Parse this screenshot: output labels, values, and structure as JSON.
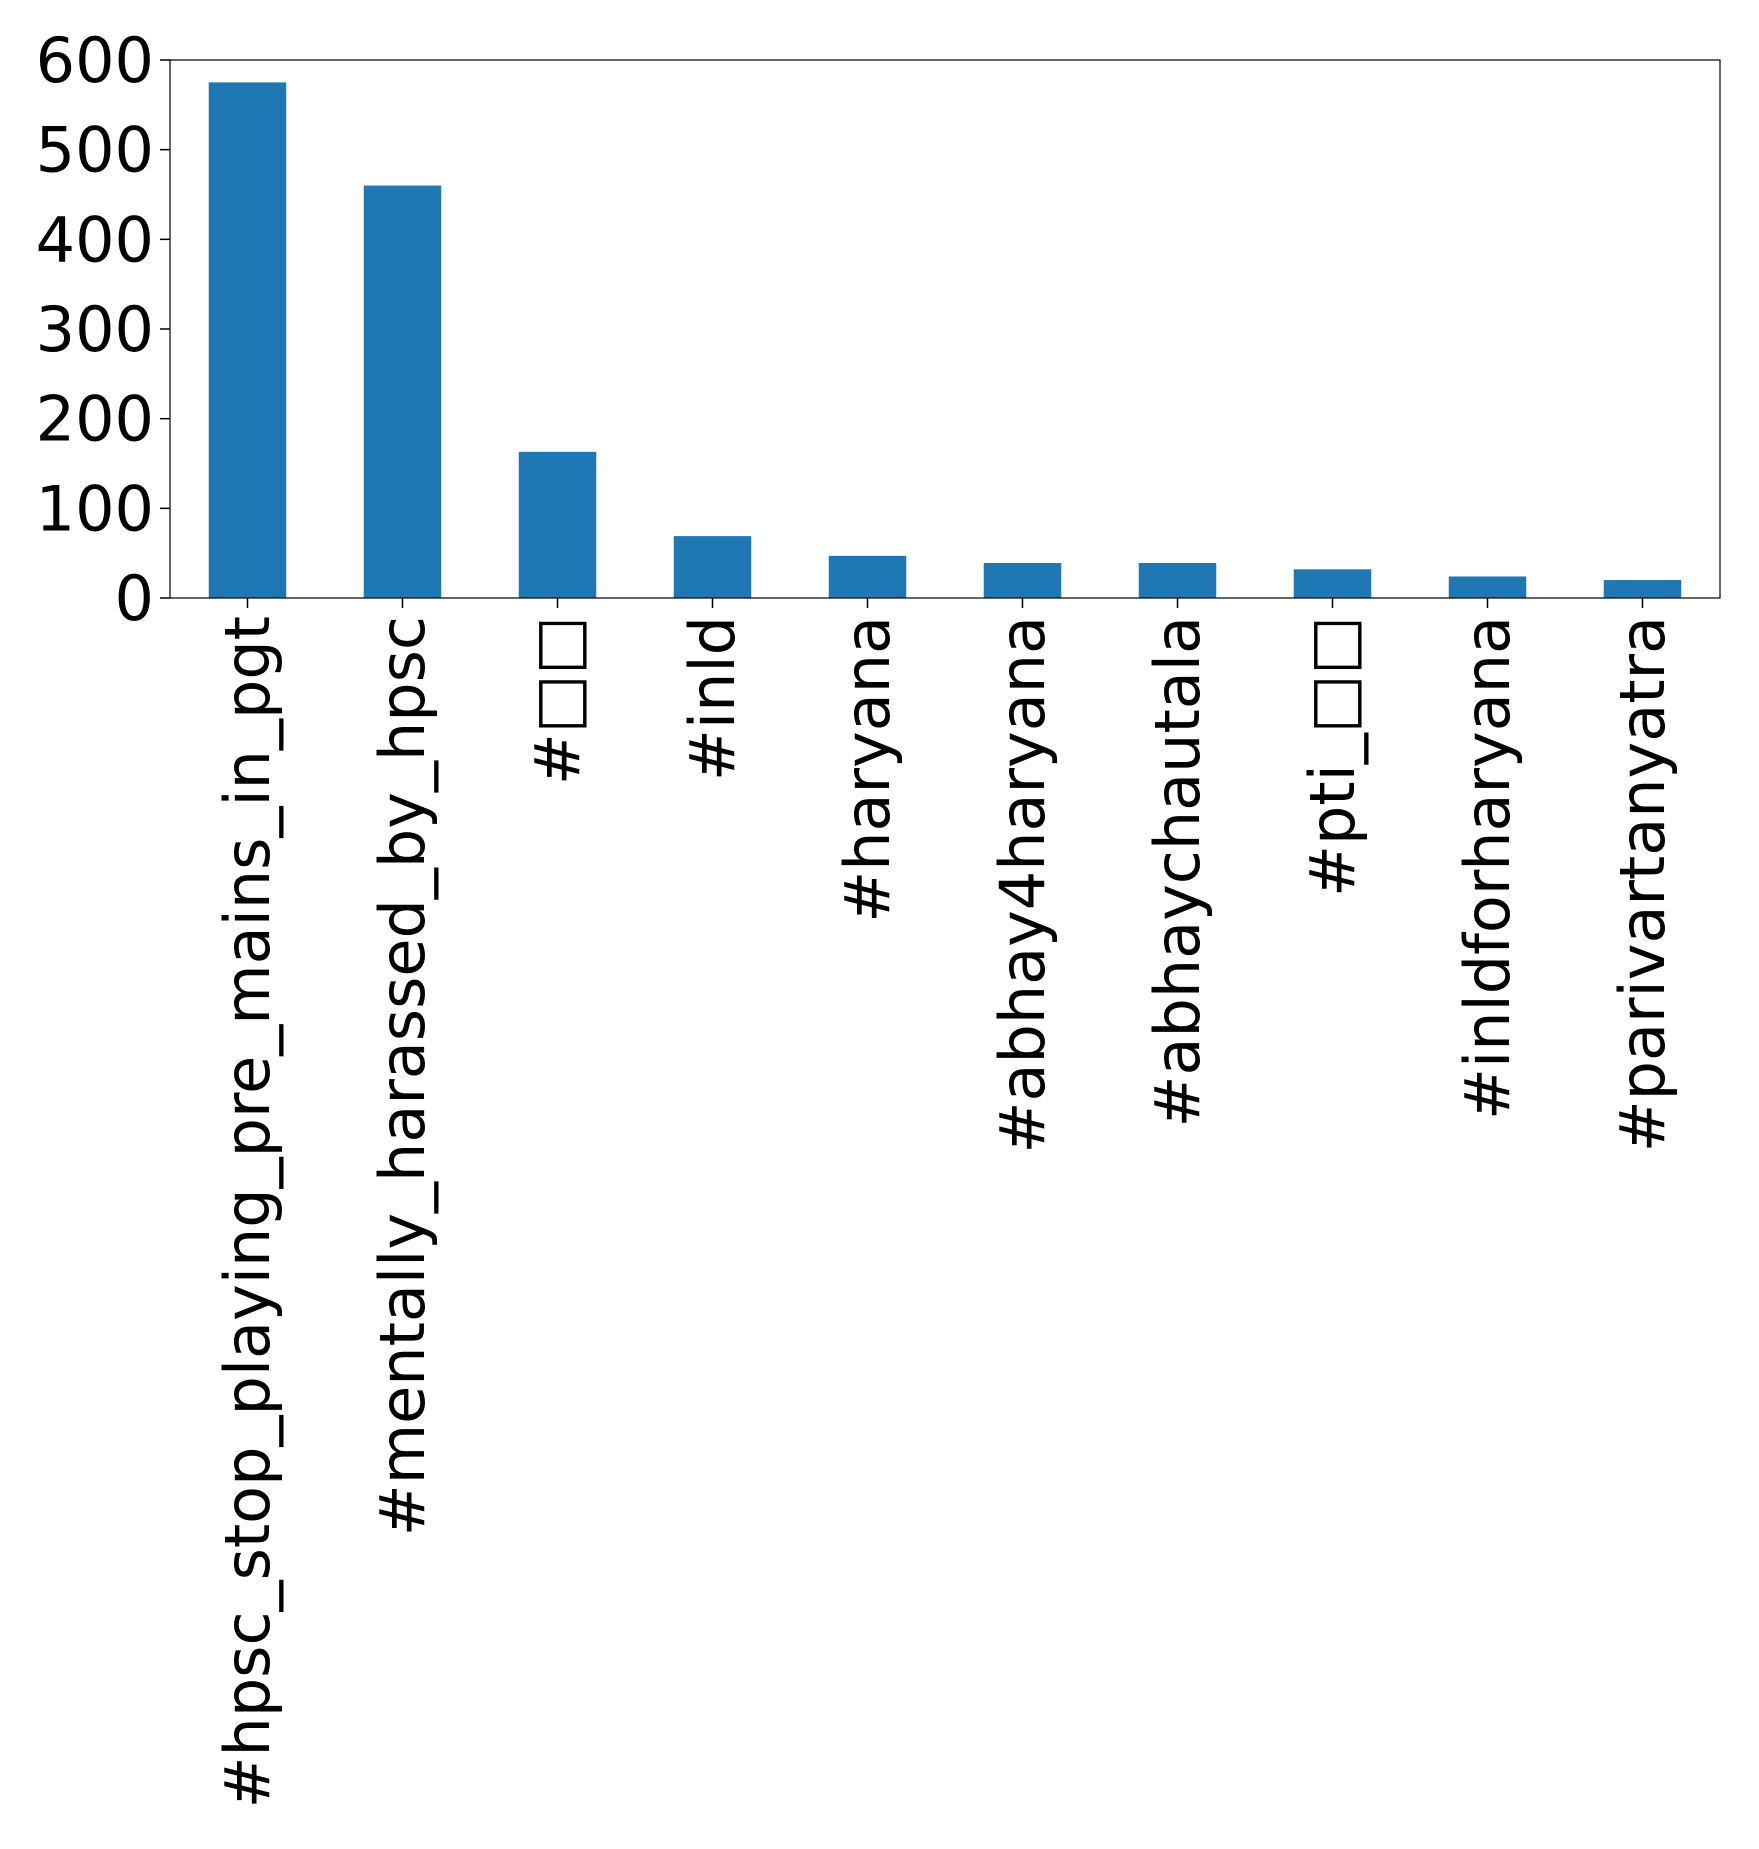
{
  "chart_data": {
    "type": "bar",
    "title": "",
    "xlabel": "",
    "ylabel": "",
    "categories": [
      "#hpsc_stop_playing_pre_mains_in_pgt",
      "#mentally_harassed_by_hpsc",
      "#□□",
      "#inld",
      "#haryana",
      "#abhay4haryana",
      "#abhaychautala",
      "#pti_□□",
      "#inldforharyana",
      "#parivartanyatra"
    ],
    "values": [
      575,
      460,
      163,
      69,
      47,
      39,
      39,
      32,
      24,
      20
    ],
    "ylim": [
      0,
      600
    ],
    "yticks": [
      0,
      100,
      200,
      300,
      400,
      500,
      600
    ],
    "grid": false,
    "legend": "none",
    "colors": {
      "bar": "#1f77b4",
      "axis": "#000000"
    }
  }
}
